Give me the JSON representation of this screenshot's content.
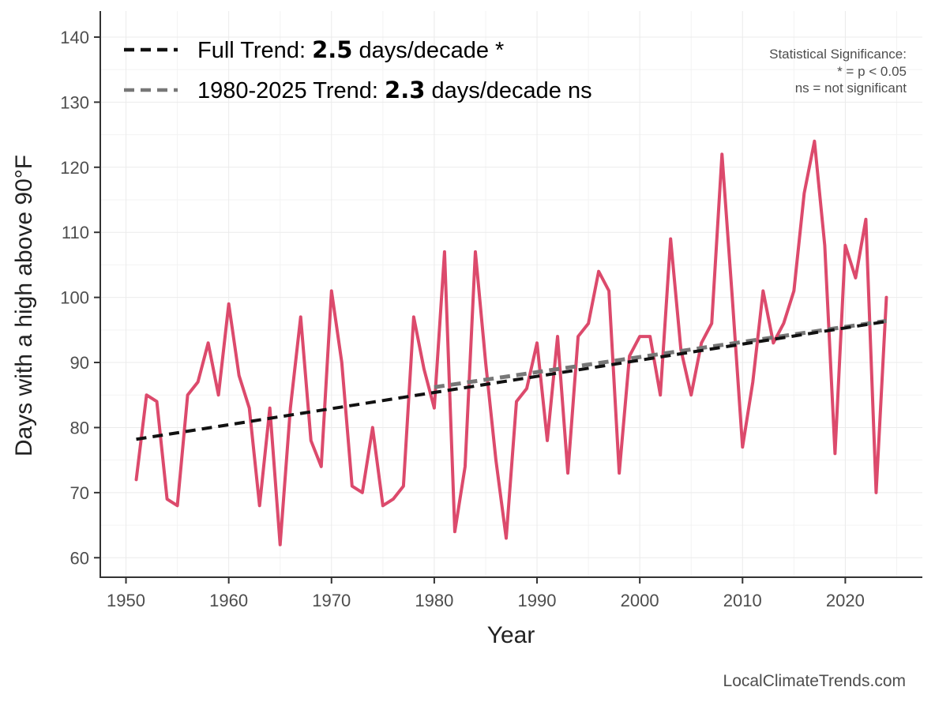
{
  "chart_data": {
    "type": "line",
    "title": "",
    "xlabel": "Year",
    "ylabel": "Days with a high above 90°F",
    "xlim": [
      1947.5,
      2027.5
    ],
    "ylim": [
      57,
      144
    ],
    "x_ticks": [
      1950,
      1960,
      1970,
      1980,
      1990,
      2000,
      2010,
      2020
    ],
    "y_ticks": [
      60,
      70,
      80,
      90,
      100,
      110,
      120,
      130,
      140
    ],
    "grid": true,
    "legend_position": "top-left",
    "series": [
      {
        "name": "Days above 90°F",
        "color": "#dc4a6c",
        "x": [
          1951,
          1952,
          1953,
          1954,
          1955,
          1956,
          1957,
          1958,
          1959,
          1960,
          1961,
          1962,
          1963,
          1964,
          1965,
          1966,
          1967,
          1968,
          1969,
          1970,
          1971,
          1972,
          1973,
          1974,
          1975,
          1976,
          1977,
          1978,
          1979,
          1980,
          1981,
          1982,
          1983,
          1984,
          1985,
          1986,
          1987,
          1988,
          1989,
          1990,
          1991,
          1992,
          1993,
          1994,
          1995,
          1996,
          1997,
          1998,
          1999,
          2000,
          2001,
          2002,
          2003,
          2004,
          2005,
          2006,
          2007,
          2008,
          2009,
          2010,
          2011,
          2012,
          2013,
          2014,
          2015,
          2016,
          2017,
          2018,
          2019,
          2020,
          2021,
          2022,
          2023,
          2024
        ],
        "values": [
          72,
          85,
          84,
          69,
          68,
          85,
          87,
          93,
          85,
          99,
          88,
          83,
          68,
          83,
          62,
          83,
          97,
          78,
          74,
          101,
          90,
          71,
          70,
          80,
          68,
          69,
          71,
          97,
          89,
          83,
          107,
          64,
          74,
          107,
          90,
          75,
          63,
          84,
          86,
          93,
          78,
          94,
          73,
          94,
          96,
          104,
          101,
          73,
          91,
          94,
          94,
          85,
          109,
          92,
          85,
          93,
          96,
          122,
          100,
          77,
          87,
          101,
          93,
          96,
          101,
          116,
          124,
          108,
          76,
          108,
          103,
          112,
          70,
          100
        ]
      }
    ],
    "trend_lines": [
      {
        "name": "Full Trend",
        "color": "#111111",
        "x": [
          1951,
          2024
        ],
        "values": [
          78.2,
          96.3
        ],
        "legend_prefix": "Full Trend: ",
        "legend_value": "2.5",
        "legend_suffix": " days/decade *"
      },
      {
        "name": "1980-2025 Trend",
        "color": "#777777",
        "x": [
          1980,
          2024
        ],
        "values": [
          86.2,
          96.4
        ],
        "legend_prefix": "1980-2025 Trend: ",
        "legend_value": "2.3",
        "legend_suffix": " days/decade ns"
      }
    ],
    "annotations": {
      "significance_title": "Statistical Significance:",
      "significance_star": "* = p < 0.05",
      "significance_ns": "ns = not significant"
    },
    "credit": "LocalClimateTrends.com"
  }
}
